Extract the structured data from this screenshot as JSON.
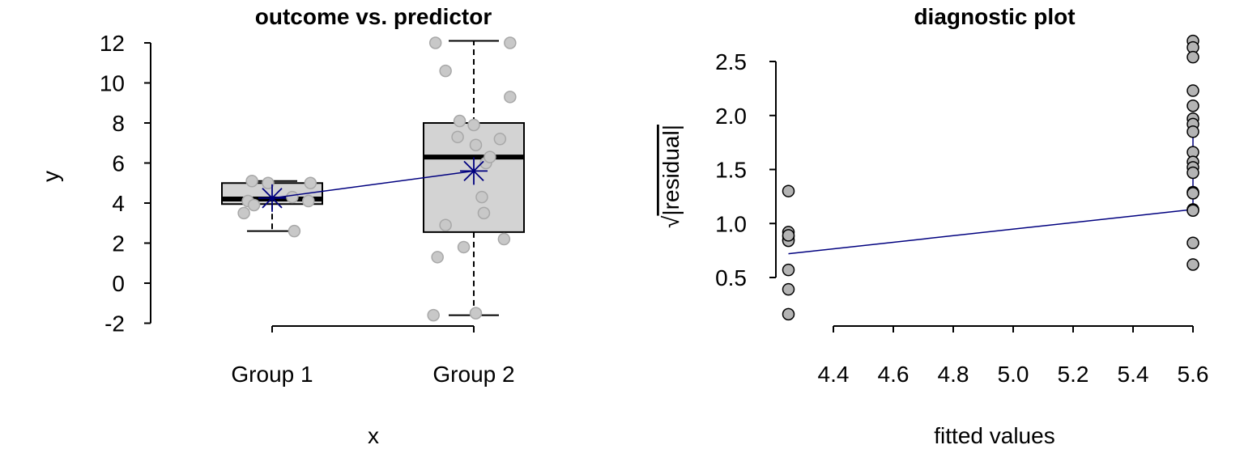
{
  "chart_data": [
    {
      "type": "box",
      "title": "outcome vs. predictor",
      "xlabel": "x",
      "ylabel": "y",
      "categories": [
        "Group 1",
        "Group 2"
      ],
      "ylim": [
        -2,
        12
      ],
      "yticks": [
        -2,
        0,
        2,
        4,
        6,
        8,
        10,
        12
      ],
      "ytick_labels": [
        "-2",
        "0",
        "2",
        "4",
        "6",
        "8",
        "10",
        "12"
      ],
      "boxes": [
        {
          "category": "Group 1",
          "whisker_low": 2.6,
          "q1": 3.95,
          "median": 4.2,
          "q3": 5.0,
          "whisker_high": 5.1,
          "mean": 4.25
        },
        {
          "category": "Group 2",
          "whisker_low": -1.6,
          "q1": 2.55,
          "median": 6.3,
          "q3": 8.0,
          "whisker_high": 12.1,
          "mean": 5.6
        }
      ],
      "points": [
        {
          "group": 1,
          "jitter": -0.14,
          "y": 3.5
        },
        {
          "group": 1,
          "jitter": -0.12,
          "y": 4.1
        },
        {
          "group": 1,
          "jitter": -0.1,
          "y": 5.1
        },
        {
          "group": 1,
          "jitter": -0.09,
          "y": 3.9
        },
        {
          "group": 1,
          "jitter": -0.02,
          "y": 5.0
        },
        {
          "group": 1,
          "jitter": 0.1,
          "y": 4.3
        },
        {
          "group": 1,
          "jitter": 0.11,
          "y": 2.6
        },
        {
          "group": 1,
          "jitter": 0.18,
          "y": 4.1
        },
        {
          "group": 1,
          "jitter": 0.19,
          "y": 5.0
        },
        {
          "group": 2,
          "jitter": -0.2,
          "y": -1.6
        },
        {
          "group": 2,
          "jitter": -0.19,
          "y": 12.0
        },
        {
          "group": 2,
          "jitter": -0.18,
          "y": 1.3
        },
        {
          "group": 2,
          "jitter": -0.14,
          "y": 10.6
        },
        {
          "group": 2,
          "jitter": -0.14,
          "y": 2.9
        },
        {
          "group": 2,
          "jitter": -0.08,
          "y": 7.3
        },
        {
          "group": 2,
          "jitter": -0.07,
          "y": 8.1
        },
        {
          "group": 2,
          "jitter": -0.05,
          "y": 1.8
        },
        {
          "group": 2,
          "jitter": 0.0,
          "y": 7.9
        },
        {
          "group": 2,
          "jitter": 0.01,
          "y": 6.9
        },
        {
          "group": 2,
          "jitter": 0.01,
          "y": -1.5
        },
        {
          "group": 2,
          "jitter": 0.04,
          "y": 4.3
        },
        {
          "group": 2,
          "jitter": 0.05,
          "y": 3.5
        },
        {
          "group": 2,
          "jitter": 0.06,
          "y": 6.0
        },
        {
          "group": 2,
          "jitter": 0.08,
          "y": 6.3
        },
        {
          "group": 2,
          "jitter": 0.13,
          "y": 7.2
        },
        {
          "group": 2,
          "jitter": 0.15,
          "y": 2.2
        },
        {
          "group": 2,
          "jitter": 0.18,
          "y": 9.3
        },
        {
          "group": 2,
          "jitter": 0.18,
          "y": 12.0
        }
      ],
      "mean_line": [
        {
          "group": 1,
          "y": 4.25
        },
        {
          "group": 2,
          "y": 5.6
        }
      ],
      "colors": {
        "box_fill": "#d3d3d3",
        "points": "#c8c8c8",
        "points_edge": "#a8a8a8",
        "mean": "#00007f"
      }
    },
    {
      "type": "scatter",
      "title": "diagnostic plot",
      "xlabel": "fitted values",
      "ylabel": "√|residual|",
      "ylabel_radical": "√",
      "ylabel_text": "|residual|",
      "xticks": [
        4.4,
        4.6,
        4.8,
        5.0,
        5.2,
        5.4,
        5.6
      ],
      "xtick_labels": [
        "4.4",
        "4.6",
        "4.8",
        "5.0",
        "5.2",
        "5.4",
        "5.6"
      ],
      "yticks": [
        0.5,
        1.0,
        1.5,
        2.0,
        2.5
      ],
      "ytick_labels": [
        "0.5",
        "1.0",
        "1.5",
        "2.0",
        "2.5"
      ],
      "points": [
        {
          "x": 4.25,
          "y": 1.3
        },
        {
          "x": 4.25,
          "y": 0.92
        },
        {
          "x": 4.25,
          "y": 0.88
        },
        {
          "x": 4.25,
          "y": 0.85
        },
        {
          "x": 4.25,
          "y": 0.84
        },
        {
          "x": 4.25,
          "y": 0.57
        },
        {
          "x": 4.25,
          "y": 0.39
        },
        {
          "x": 4.25,
          "y": 0.16
        },
        {
          "x": 4.25,
          "y": 0.89
        },
        {
          "x": 5.6,
          "y": 2.69
        },
        {
          "x": 5.6,
          "y": 2.63
        },
        {
          "x": 5.6,
          "y": 2.54
        },
        {
          "x": 5.6,
          "y": 2.23
        },
        {
          "x": 5.6,
          "y": 2.09
        },
        {
          "x": 5.6,
          "y": 1.97
        },
        {
          "x": 5.6,
          "y": 1.92
        },
        {
          "x": 5.6,
          "y": 1.85
        },
        {
          "x": 5.6,
          "y": 1.66
        },
        {
          "x": 5.6,
          "y": 1.57
        },
        {
          "x": 5.6,
          "y": 1.52
        },
        {
          "x": 5.6,
          "y": 1.47
        },
        {
          "x": 5.6,
          "y": 1.29
        },
        {
          "x": 5.6,
          "y": 1.28
        },
        {
          "x": 5.6,
          "y": 1.13
        },
        {
          "x": 5.6,
          "y": 1.12
        },
        {
          "x": 5.6,
          "y": 0.82
        },
        {
          "x": 5.6,
          "y": 0.62
        }
      ],
      "trend_line": [
        {
          "x": 4.25,
          "y": 0.72
        },
        {
          "x": 5.6,
          "y": 1.13
        }
      ],
      "colors": {
        "points": "#b4b4b4",
        "points_edge": "#000000",
        "line": "#00007f"
      }
    }
  ]
}
